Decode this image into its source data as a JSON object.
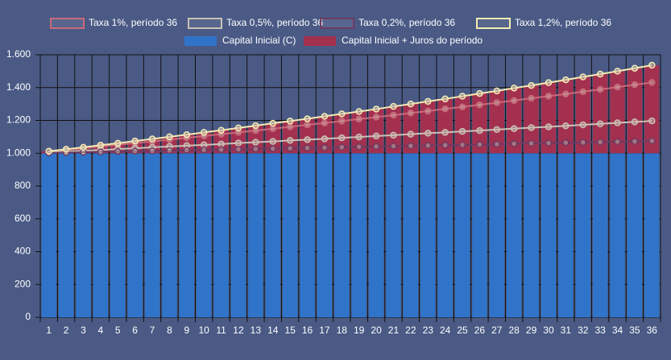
{
  "chart_data": {
    "type": "bar",
    "categories": [
      "1",
      "2",
      "3",
      "4",
      "5",
      "6",
      "7",
      "8",
      "9",
      "10",
      "11",
      "12",
      "13",
      "14",
      "15",
      "16",
      "17",
      "18",
      "19",
      "20",
      "21",
      "22",
      "23",
      "24",
      "25",
      "26",
      "27",
      "28",
      "29",
      "30",
      "31",
      "32",
      "33",
      "34",
      "35",
      "36"
    ],
    "ylim": [
      0,
      1600
    ],
    "yticks": [
      0,
      200,
      400,
      600,
      800,
      {
        "value": 1000,
        "label": "1.000"
      },
      {
        "value": 1200,
        "label": "1.200"
      },
      {
        "value": 1400,
        "label": "1.400"
      },
      {
        "value": 1600,
        "label": "1.600"
      }
    ],
    "grid": true,
    "stacked": true,
    "series": [
      {
        "name": "Taxa 1%, período 36",
        "type": "line",
        "color": "#c9697a",
        "values": [
          1010,
          1020,
          1030,
          1041,
          1051,
          1062,
          1072,
          1083,
          1094,
          1105,
          1116,
          1127,
          1138,
          1149,
          1161,
          1173,
          1184,
          1196,
          1208,
          1220,
          1232,
          1245,
          1257,
          1270,
          1282,
          1295,
          1308,
          1321,
          1335,
          1348,
          1361,
          1375,
          1389,
          1403,
          1417,
          1431
        ]
      },
      {
        "name": "Taxa 0,5%, período 36",
        "type": "line",
        "color": "#c8c2b6",
        "values": [
          1005,
          1010,
          1015,
          1020,
          1025,
          1030,
          1036,
          1041,
          1046,
          1051,
          1056,
          1062,
          1067,
          1072,
          1078,
          1083,
          1088,
          1094,
          1099,
          1105,
          1110,
          1116,
          1122,
          1127,
          1133,
          1138,
          1144,
          1150,
          1156,
          1161,
          1167,
          1173,
          1179,
          1185,
          1191,
          1197
        ]
      },
      {
        "name": "Taxa 0,2%, período 36",
        "type": "line",
        "color": "#6e3a62",
        "values": [
          1002,
          1004,
          1006,
          1008,
          1010,
          1012,
          1014,
          1016,
          1018,
          1020,
          1022,
          1024,
          1026,
          1028,
          1030,
          1032,
          1034,
          1037,
          1039,
          1041,
          1043,
          1045,
          1047,
          1049,
          1051,
          1053,
          1055,
          1058,
          1060,
          1062,
          1064,
          1066,
          1068,
          1070,
          1072,
          1075
        ]
      },
      {
        "name": "Taxa 1,2%, período 36",
        "type": "line",
        "color": "#f2ecb4",
        "values": [
          1012,
          1024,
          1036,
          1049,
          1061,
          1074,
          1087,
          1100,
          1113,
          1127,
          1140,
          1154,
          1168,
          1182,
          1196,
          1210,
          1225,
          1240,
          1254,
          1269,
          1285,
          1300,
          1316,
          1331,
          1347,
          1364,
          1380,
          1397,
          1413,
          1430,
          1447,
          1465,
          1482,
          1500,
          1518,
          1536
        ]
      },
      {
        "name": "Capital Inicial (C)",
        "type": "bar",
        "color": "#2f74c9",
        "values": [
          1000,
          1000,
          1000,
          1000,
          1000,
          1000,
          1000,
          1000,
          1000,
          1000,
          1000,
          1000,
          1000,
          1000,
          1000,
          1000,
          1000,
          1000,
          1000,
          1000,
          1000,
          1000,
          1000,
          1000,
          1000,
          1000,
          1000,
          1000,
          1000,
          1000,
          1000,
          1000,
          1000,
          1000,
          1000,
          1000
        ]
      },
      {
        "name": "Capital Inicial + Juros do período",
        "type": "bar",
        "color": "#a3304f",
        "values": [
          12,
          24,
          36,
          49,
          61,
          74,
          87,
          100,
          113,
          127,
          140,
          154,
          168,
          182,
          196,
          210,
          225,
          240,
          254,
          269,
          285,
          300,
          316,
          331,
          347,
          364,
          380,
          397,
          413,
          430,
          447,
          465,
          482,
          500,
          518,
          536
        ]
      }
    ]
  }
}
